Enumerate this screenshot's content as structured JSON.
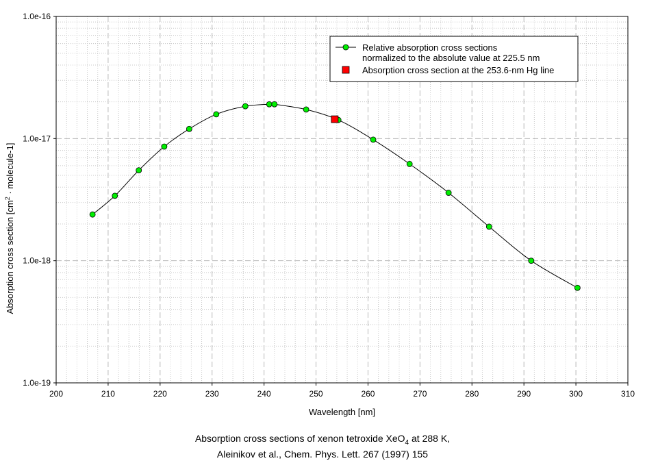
{
  "chart_data": {
    "type": "line",
    "title": "Absorption cross sections of xenon tetroxide XeO4 at 288 K,",
    "title_parts": {
      "pre": "Absorption cross sections of xenon tetroxide XeO",
      "sub": "4",
      "post": " at 288 K,"
    },
    "subtitle": "Aleinikov et al., Chem. Phys. Lett. 267 (1997) 155",
    "xlabel": "Wavelength [nm]",
    "ylabel": "Absorption cross section [cm2 · molecule-1]",
    "ylabel_parts": {
      "pre": "Absorption cross section [cm",
      "sup": "2",
      "post": " · molecule-1]"
    },
    "xlim": [
      200,
      310
    ],
    "ylim": [
      1e-19,
      1e-16
    ],
    "yscale": "log",
    "grid": true,
    "xticks": [
      "200",
      "210",
      "220",
      "230",
      "240",
      "250",
      "260",
      "270",
      "280",
      "290",
      "300",
      "310"
    ],
    "yticks": [
      "1.0e-19",
      "1.0e-18",
      "1.0e-17",
      "1.0e-16"
    ],
    "legend_position": "top-right",
    "series": [
      {
        "name": "Relative absorption cross sections",
        "name_line2": "normalized to the absolute value at 225.5 nm",
        "marker": "circle",
        "color": "#00ee00",
        "line": true,
        "x": [
          207.0,
          211.3,
          215.9,
          220.8,
          225.6,
          230.8,
          236.4,
          241.0,
          242.0,
          248.1,
          254.3,
          261.0,
          268.0,
          275.5,
          283.3,
          291.4,
          300.3
        ],
        "y": [
          2.39e-18,
          3.4e-18,
          5.5e-18,
          8.6e-18,
          1.2e-17,
          1.58e-17,
          1.84e-17,
          1.91e-17,
          1.91e-17,
          1.73e-17,
          1.42e-17,
          9.8e-18,
          6.2e-18,
          3.6e-18,
          1.9e-18,
          1e-18,
          6e-19
        ]
      },
      {
        "name": "Absorption cross section at the 253.6-nm Hg line",
        "marker": "square",
        "color": "#ff0000",
        "line": false,
        "x": [
          253.6
        ],
        "y": [
          1.44e-17
        ]
      }
    ]
  }
}
